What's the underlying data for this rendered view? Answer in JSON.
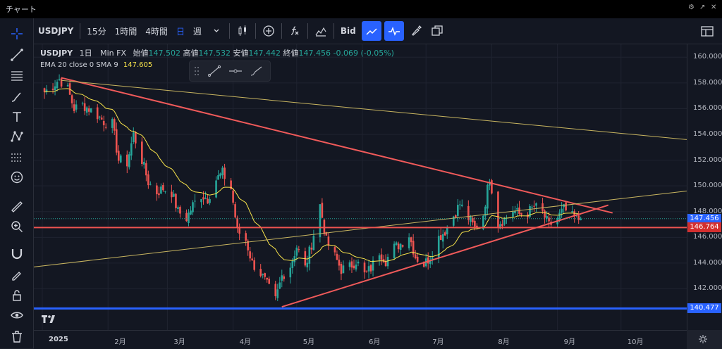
{
  "window": {
    "title": "チャート"
  },
  "toolbar": {
    "symbol": "USDJPY",
    "intervals": [
      "15分",
      "1時間",
      "4時間",
      "日",
      "週"
    ],
    "active_interval": "日",
    "price_source": "Bid"
  },
  "legend": {
    "symbol": "USDJPY",
    "interval": "1日",
    "source": "Min FX",
    "open_label": "始値",
    "open": "147.502",
    "high_label": "高値",
    "high": "147.532",
    "low_label": "安値",
    "low": "147.442",
    "close_label": "終値",
    "close": "147.456",
    "change": "-0.069",
    "change_pct": "(-0.05%)"
  },
  "indicator": {
    "label": "EMA 20 close 0 SMA 9",
    "value": "147.605"
  },
  "colors": {
    "up": "#26a69a",
    "down": "#ef5350",
    "ema": "#f7e34b",
    "trend_red": "#f05a5a",
    "support_blue": "#2962ff",
    "trend_yellow": "#c8b560",
    "bg": "#131722"
  },
  "chart_data": {
    "type": "candlestick",
    "symbol": "USDJPY",
    "interval": "1日",
    "ylim": [
      138.8,
      161.0
    ],
    "y_ticks": [
      142,
      144,
      146,
      148,
      150,
      152,
      154,
      156,
      158,
      160
    ],
    "y_tick_labels": [
      "142.000",
      "144.000",
      "146.000",
      "148.000",
      "150.000",
      "152.000",
      "154.000",
      "156.000",
      "158.000",
      "160.000"
    ],
    "x_labels": [
      {
        "label": "2025",
        "date": "2025-01-01"
      },
      {
        "label": "2月",
        "date": "2025-02-01"
      },
      {
        "label": "3月",
        "date": "2025-03-01"
      },
      {
        "label": "4月",
        "date": "2025-04-01"
      },
      {
        "label": "5月",
        "date": "2025-05-01"
      },
      {
        "label": "6月",
        "date": "2025-06-01"
      },
      {
        "label": "7月",
        "date": "2025-07-01"
      },
      {
        "label": "8月",
        "date": "2025-08-01"
      },
      {
        "label": "9月",
        "date": "2025-09-01"
      },
      {
        "label": "10月",
        "date": "2025-10-01"
      }
    ],
    "xlim": [
      "2024-12-28",
      "2025-11-01"
    ],
    "series_close": [
      [
        "2025-01-02",
        157.3
      ],
      [
        "2025-01-06",
        157.8
      ],
      [
        "2025-01-09",
        158.3
      ],
      [
        "2025-01-13",
        157.5
      ],
      [
        "2025-01-16",
        156.0
      ],
      [
        "2025-01-20",
        156.3
      ],
      [
        "2025-01-23",
        156.0
      ],
      [
        "2025-01-27",
        155.5
      ],
      [
        "2025-01-30",
        155.0
      ],
      [
        "2025-02-03",
        154.8
      ],
      [
        "2025-02-06",
        152.0
      ],
      [
        "2025-02-10",
        151.8
      ],
      [
        "2025-02-13",
        154.0
      ],
      [
        "2025-02-17",
        152.0
      ],
      [
        "2025-02-20",
        150.3
      ],
      [
        "2025-02-24",
        149.5
      ],
      [
        "2025-02-27",
        149.8
      ],
      [
        "2025-03-03",
        149.5
      ],
      [
        "2025-03-06",
        148.0
      ],
      [
        "2025-03-10",
        147.5
      ],
      [
        "2025-03-13",
        148.5
      ],
      [
        "2025-03-17",
        149.3
      ],
      [
        "2025-03-20",
        149.0
      ],
      [
        "2025-03-24",
        150.5
      ],
      [
        "2025-03-27",
        151.0
      ],
      [
        "2025-03-31",
        149.8
      ],
      [
        "2025-04-03",
        146.5
      ],
      [
        "2025-04-07",
        145.8
      ],
      [
        "2025-04-10",
        144.0
      ],
      [
        "2025-04-14",
        143.2
      ],
      [
        "2025-04-17",
        142.3
      ],
      [
        "2025-04-21",
        141.1
      ],
      [
        "2025-04-24",
        143.0
      ],
      [
        "2025-04-28",
        143.8
      ],
      [
        "2025-05-01",
        145.3
      ],
      [
        "2025-05-05",
        143.6
      ],
      [
        "2025-05-08",
        145.5
      ],
      [
        "2025-05-12",
        148.5
      ],
      [
        "2025-05-15",
        145.7
      ],
      [
        "2025-05-19",
        144.5
      ],
      [
        "2025-05-22",
        143.5
      ],
      [
        "2025-05-26",
        143.7
      ],
      [
        "2025-05-29",
        144.2
      ],
      [
        "2025-06-02",
        143.1
      ],
      [
        "2025-06-05",
        143.6
      ],
      [
        "2025-06-09",
        144.9
      ],
      [
        "2025-06-12",
        144.2
      ],
      [
        "2025-06-16",
        145.2
      ],
      [
        "2025-06-19",
        145.5
      ],
      [
        "2025-06-23",
        146.2
      ],
      [
        "2025-06-26",
        144.5
      ],
      [
        "2025-06-30",
        143.9
      ],
      [
        "2025-07-03",
        144.5
      ],
      [
        "2025-07-07",
        146.0
      ],
      [
        "2025-07-10",
        146.5
      ],
      [
        "2025-07-14",
        147.7
      ],
      [
        "2025-07-17",
        148.6
      ],
      [
        "2025-07-21",
        147.5
      ],
      [
        "2025-07-24",
        146.7
      ],
      [
        "2025-07-28",
        147.8
      ],
      [
        "2025-07-31",
        150.7
      ],
      [
        "2025-08-04",
        147.1
      ],
      [
        "2025-08-07",
        147.4
      ],
      [
        "2025-08-11",
        148.1
      ],
      [
        "2025-08-14",
        147.8
      ],
      [
        "2025-08-18",
        147.9
      ],
      [
        "2025-08-21",
        148.4
      ],
      [
        "2025-08-25",
        147.9
      ],
      [
        "2025-08-28",
        146.9
      ],
      [
        "2025-09-01",
        147.5
      ],
      [
        "2025-09-04",
        148.2
      ],
      [
        "2025-09-08",
        147.6
      ],
      [
        "2025-09-11",
        147.4
      ],
      [
        "2025-09-12",
        147.456
      ]
    ],
    "ema_label": "EMA 20 close 0 SMA 9",
    "ema_value": 147.605,
    "last_price": 147.456,
    "levels": [
      {
        "price": 146.764,
        "label": "146.764",
        "color": "#ef5350"
      },
      {
        "price": 140.477,
        "label": "140.477",
        "color": "#2962ff"
      }
    ],
    "trendlines": [
      {
        "color": "red",
        "from": [
          "2025-01-10",
          158.4
        ],
        "to": [
          "2025-09-27",
          147.9
        ]
      },
      {
        "color": "red",
        "from": [
          "2025-04-24",
          140.6
        ],
        "to": [
          "2025-09-25",
          148.5
        ]
      },
      {
        "color": "yellow",
        "from": [
          "2025-01-10",
          158.2
        ],
        "to": [
          "2025-11-01",
          153.6
        ]
      },
      {
        "color": "yellow",
        "from": [
          "2024-12-28",
          143.7
        ],
        "to": [
          "2025-11-01",
          149.6
        ]
      }
    ],
    "grid": true
  }
}
